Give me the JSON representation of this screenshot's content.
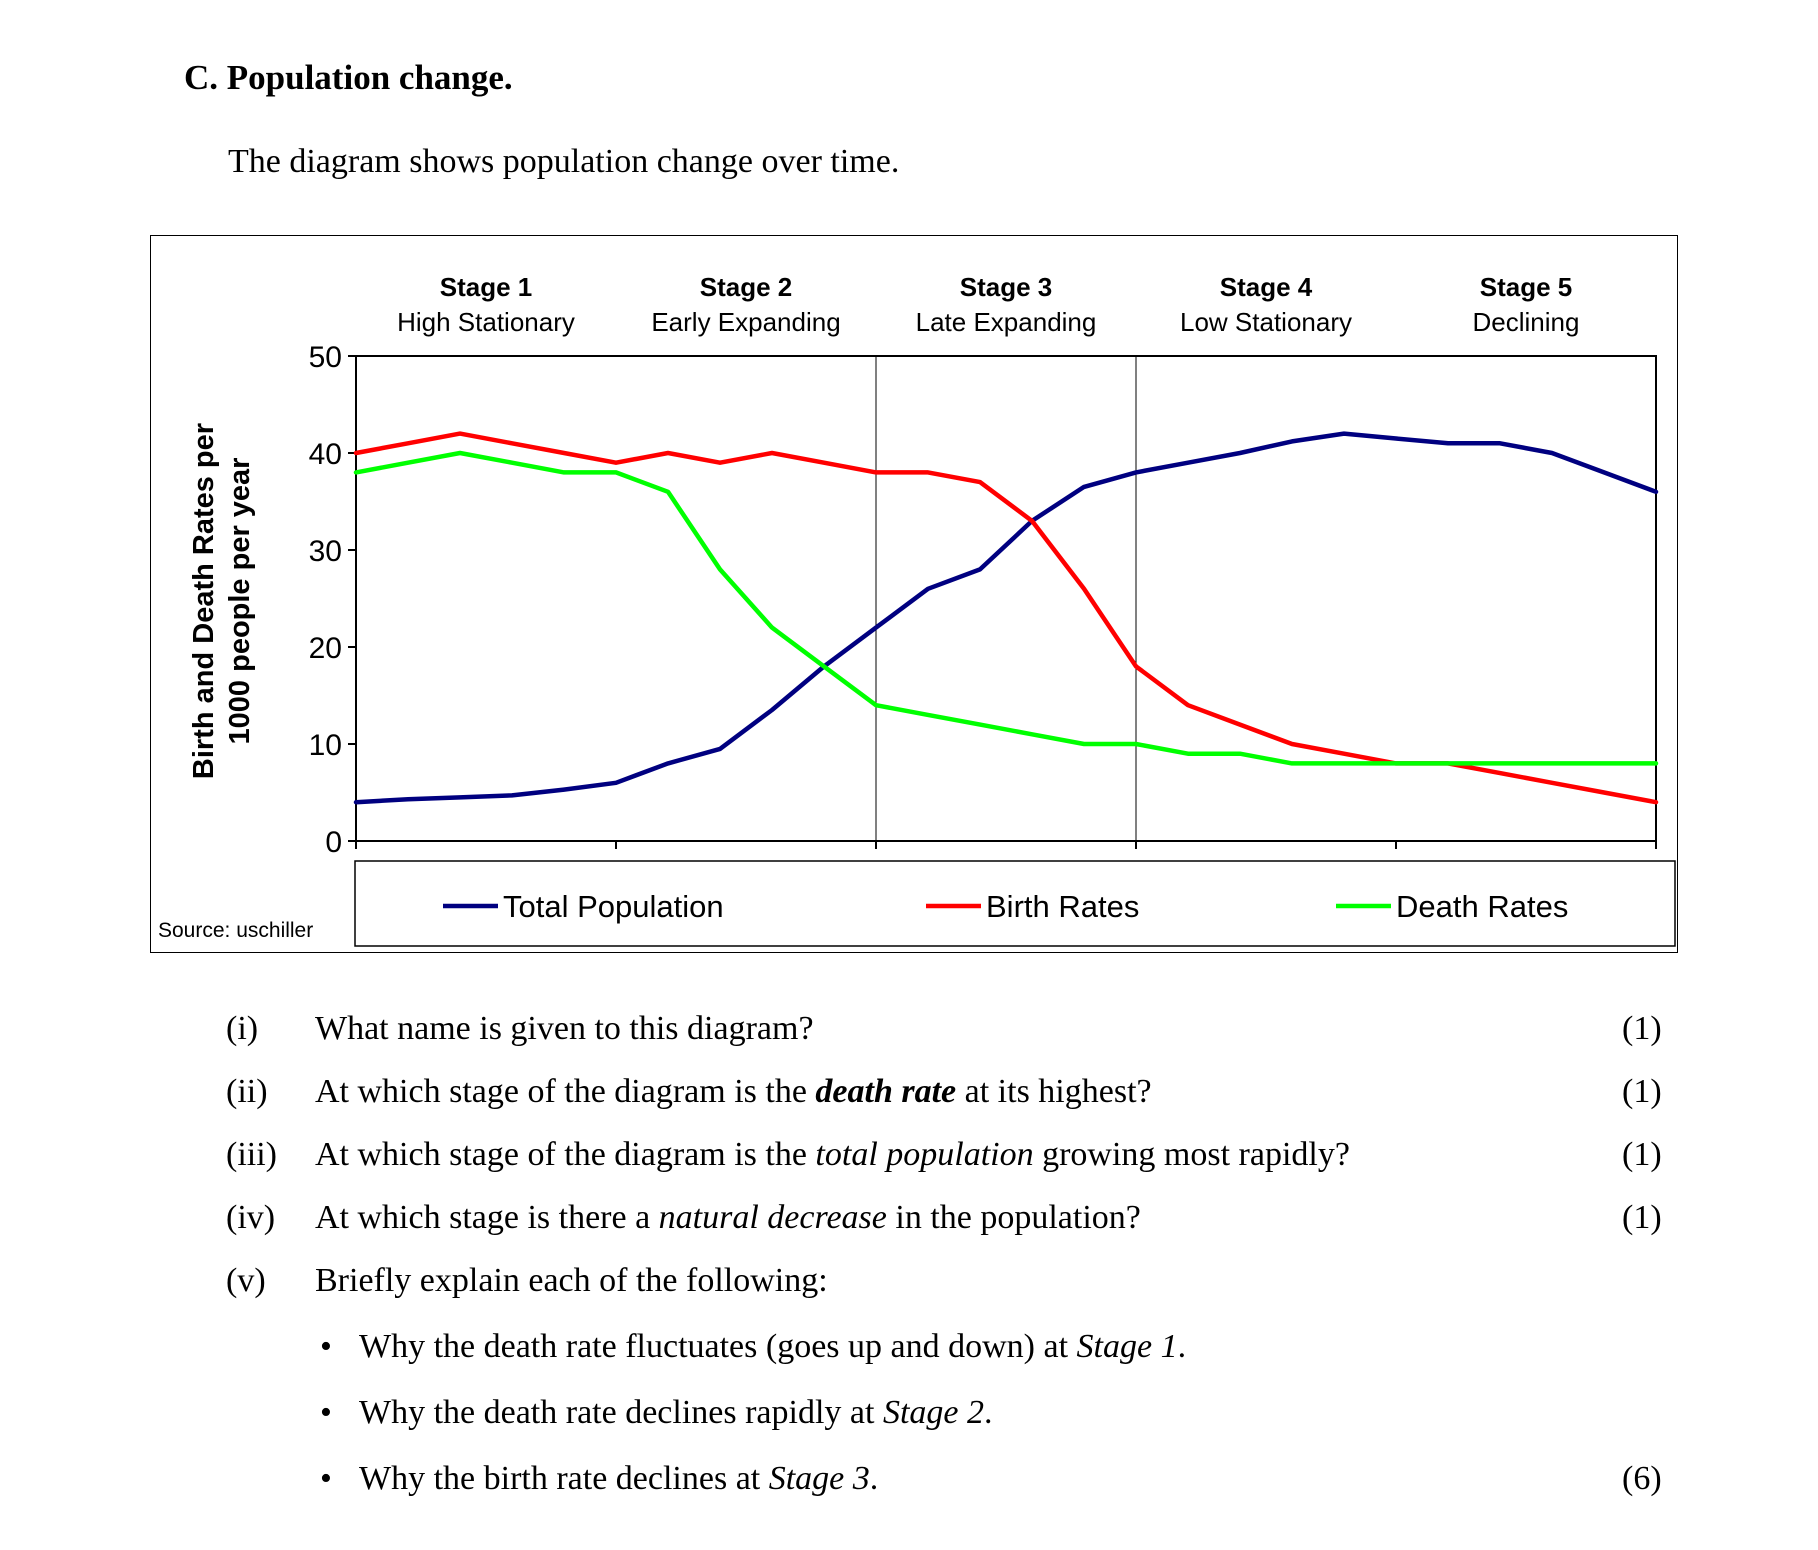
{
  "heading": "C.  Population change.",
  "intro": "The diagram shows population change over time.",
  "chart_data": {
    "type": "line",
    "ylabel_line1": "Birth and Death Rates per",
    "ylabel_line2": "1000 people per year",
    "ylim": [
      0,
      50
    ],
    "yticks": [
      "0",
      "10",
      "20",
      "30",
      "40",
      "50"
    ],
    "grid": false,
    "legend_position": "bottom",
    "source": "Source: uschiller",
    "stages": [
      {
        "name": "Stage 1",
        "desc": "High Stationary"
      },
      {
        "name": "Stage 2",
        "desc": "Early Expanding"
      },
      {
        "name": "Stage 3",
        "desc": "Late Expanding"
      },
      {
        "name": "Stage 4",
        "desc": "Low Stationary"
      },
      {
        "name": "Stage 5",
        "desc": "Declining"
      }
    ],
    "x": [
      0,
      0.2,
      0.4,
      0.6,
      0.8,
      1.0,
      1.2,
      1.4,
      1.6,
      1.8,
      2.0,
      2.2,
      2.4,
      2.6,
      2.8,
      3.0,
      3.2,
      3.4,
      3.6,
      3.8,
      4.0,
      4.2,
      4.4,
      4.6,
      4.8,
      5.0
    ],
    "series": [
      {
        "name": "Total Population",
        "color": "#000080",
        "values": [
          4.0,
          4.3,
          4.5,
          4.7,
          5.3,
          6.0,
          8.0,
          9.5,
          13.5,
          18.0,
          22.0,
          26.0,
          28.0,
          33.0,
          36.5,
          38.0,
          39.0,
          40.0,
          41.2,
          42.0,
          41.5,
          41.0,
          41.0,
          40.0,
          38.0,
          36.0
        ]
      },
      {
        "name": "Birth Rates",
        "color": "#ff0000",
        "values": [
          40.0,
          41.0,
          42.0,
          41.0,
          40.0,
          39.0,
          40.0,
          39.0,
          40.0,
          39.0,
          38.0,
          38.0,
          37.0,
          33.0,
          26.0,
          18.0,
          14.0,
          12.0,
          10.0,
          9.0,
          8.0,
          8.0,
          7.0,
          6.0,
          5.0,
          4.0
        ]
      },
      {
        "name": "Death Rates",
        "color": "#00ff00",
        "values": [
          38.0,
          39.0,
          40.0,
          39.0,
          38.0,
          38.0,
          36.0,
          28.0,
          22.0,
          18.0,
          14.0,
          13.0,
          12.0,
          11.0,
          10.0,
          10.0,
          9.0,
          9.0,
          8.0,
          8.0,
          8.0,
          8.0,
          8.0,
          8.0,
          8.0,
          8.0
        ]
      }
    ]
  },
  "questions": [
    {
      "num": "(i)",
      "mark": "(1)"
    },
    {
      "num": "(ii)",
      "mark": "(1)"
    },
    {
      "num": "(iii)",
      "mark": "(1)"
    },
    {
      "num": "(iv)",
      "mark": "(1)"
    },
    {
      "num": "(v)",
      "text": "Briefly explain each of the following:"
    }
  ],
  "q1": {
    "text": "What name is given to this diagram?"
  },
  "q2": {
    "a": "At which stage of the diagram is the ",
    "em": "death rate",
    "b": " at its highest?"
  },
  "q3": {
    "a": "At which stage of the diagram is the ",
    "em": "total population",
    "b": " growing most rapidly?"
  },
  "q4": {
    "a": "At which stage is there a ",
    "em": "natural decrease",
    "b": " in the population?"
  },
  "bullets": [
    {
      "a": "Why the death rate fluctuates (goes up and down) at ",
      "em": "Stage 1",
      "b": "."
    },
    {
      "a": "Why the death rate declines rapidly at ",
      "em": "Stage 2",
      "b": "."
    },
    {
      "a": "Why the birth rate declines at ",
      "em": "Stage 3",
      "b": ".",
      "mark": "(6)"
    }
  ],
  "bullet_symbol": "•"
}
